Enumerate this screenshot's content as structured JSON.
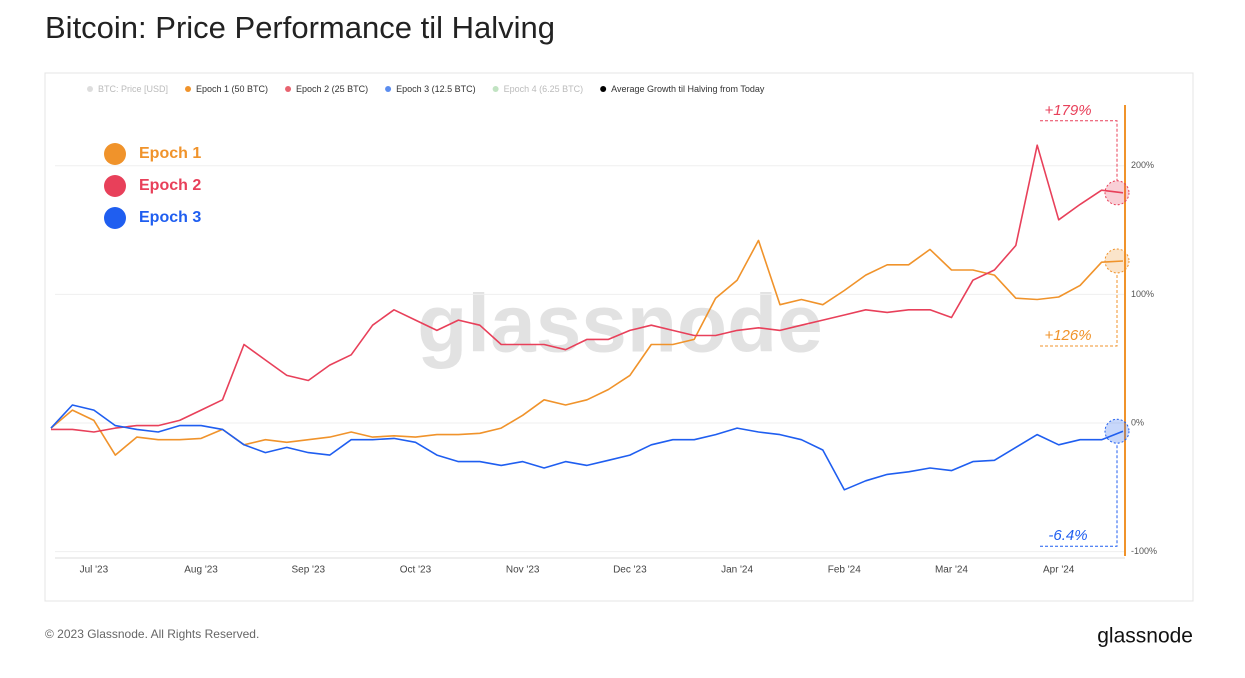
{
  "chart_data": {
    "type": "line",
    "title": "Bitcoin: Price Performance til Halving",
    "watermark": "glassnode",
    "footer": "© 2023 Glassnode. All Rights Reserved.",
    "brand": "glassnode",
    "legend_items": [
      {
        "name": "BTC: Price [USD]",
        "color": "#9e9e9e",
        "enabled": false
      },
      {
        "name": "Epoch 1 (50 BTC)",
        "color": "#f0932b",
        "enabled": true
      },
      {
        "name": "Epoch 2 (25 BTC)",
        "color": "#e8636f",
        "enabled": true
      },
      {
        "name": "Epoch 3 (12.5 BTC)",
        "color": "#5b8def",
        "enabled": true
      },
      {
        "name": "Epoch 4 (6.25 BTC)",
        "color": "#4caf50",
        "enabled": false
      },
      {
        "name": "Average Growth til Halving from Today",
        "color": "#000000",
        "enabled": true
      }
    ],
    "categories": [
      null,
      null,
      "Jul '23",
      null,
      null,
      null,
      null,
      "Aug '23",
      null,
      null,
      null,
      null,
      "Sep '23",
      null,
      null,
      null,
      null,
      "Oct '23",
      null,
      null,
      null,
      null,
      "Nov '23",
      null,
      null,
      null,
      null,
      "Dec '23",
      null,
      null,
      null,
      null,
      "Jan '24",
      null,
      null,
      null,
      null,
      "Feb '24",
      null,
      null,
      null,
      null,
      "Mar '24",
      null,
      null,
      null,
      null,
      "Apr '24",
      null,
      null,
      null
    ],
    "series": [
      {
        "name": "Epoch 1",
        "color": "#f0932b",
        "end_label": "+126%",
        "values": [
          -4,
          10,
          2,
          -25,
          -11,
          -13,
          -13,
          -12,
          -5,
          -17,
          -13,
          -15,
          -13,
          -11,
          -7,
          -11,
          -10,
          -11,
          -9,
          -9,
          -8,
          -4,
          6,
          18,
          14,
          18,
          26,
          37,
          61,
          61,
          65,
          97,
          111,
          142,
          92,
          96,
          92,
          103,
          115,
          123,
          123,
          135,
          119,
          119,
          115,
          97,
          96,
          98,
          107,
          125,
          126
        ]
      },
      {
        "name": "Epoch 2",
        "color": "#e8405a",
        "end_label": "+179%",
        "values": [
          -5,
          -5,
          -7,
          -4,
          -2,
          -2,
          2,
          10,
          18,
          61,
          49,
          37,
          33,
          45,
          53,
          76,
          88,
          80,
          72,
          80,
          76,
          61,
          61,
          61,
          57,
          65,
          65,
          72,
          76,
          72,
          68,
          68,
          72,
          74,
          72,
          76,
          80,
          84,
          88,
          86,
          88,
          88,
          82,
          111,
          119,
          138,
          216,
          158,
          170,
          181,
          179
        ]
      },
      {
        "name": "Epoch 3",
        "color": "#1f5ef0",
        "end_label": "-6.4%",
        "values": [
          -4,
          14,
          10,
          -2,
          -5,
          -7,
          -2,
          -2,
          -5,
          -17,
          -23,
          -19,
          -23,
          -25,
          -13,
          -13,
          -12,
          -15,
          -25,
          -30,
          -30,
          -33,
          -30,
          -35,
          -30,
          -33,
          -29,
          -25,
          -17,
          -13,
          -13,
          -9,
          -4,
          -7,
          -9,
          -13,
          -21,
          -52,
          -45,
          -40,
          -38,
          -35,
          -37,
          -30,
          -29,
          -19,
          -9,
          -17,
          -13,
          -13,
          -6.4
        ]
      }
    ],
    "ylim": [
      -105,
      250
    ],
    "yticks": [
      {
        "value": 200,
        "label": "200%"
      },
      {
        "value": 100,
        "label": "100%"
      },
      {
        "value": 0,
        "label": "0%"
      },
      {
        "value": -100,
        "label": "-100%"
      }
    ],
    "grid": true
  }
}
